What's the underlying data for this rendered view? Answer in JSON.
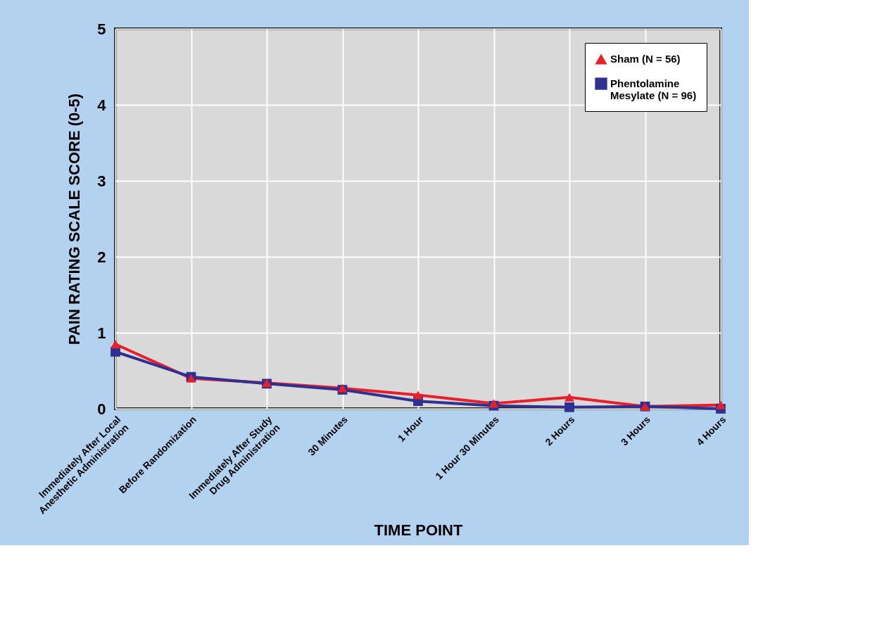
{
  "chart_data": {
    "type": "line",
    "xlabel": "TIME POINT",
    "ylabel": "PAIN RATING SCALE SCORE (0-5)",
    "categories": [
      "Immediately After Local Anesthetic Administration",
      "Before Randomization",
      "Immediately After Study Drug Administration",
      "30 Minutes",
      "1 Hour",
      "1 Hour 30 Minutes",
      "2 Hours",
      "3 Hours",
      "4 Hours"
    ],
    "series": [
      {
        "name": "Sham (N = 56)",
        "color": "#e8202a",
        "marker": "triangle",
        "values": [
          0.85,
          0.4,
          0.34,
          0.27,
          0.18,
          0.07,
          0.15,
          0.03,
          0.05
        ]
      },
      {
        "name": "Phentolamine Mesylate (N = 96)",
        "color": "#2e3192",
        "marker": "square",
        "values": [
          0.75,
          0.42,
          0.33,
          0.25,
          0.1,
          0.04,
          0.02,
          0.03,
          0.0
        ]
      }
    ],
    "ylim": [
      0,
      5
    ],
    "yticks": [
      0,
      1,
      2,
      3,
      4,
      5
    ],
    "grid": true,
    "legend": "top right",
    "line_style": "solid"
  }
}
